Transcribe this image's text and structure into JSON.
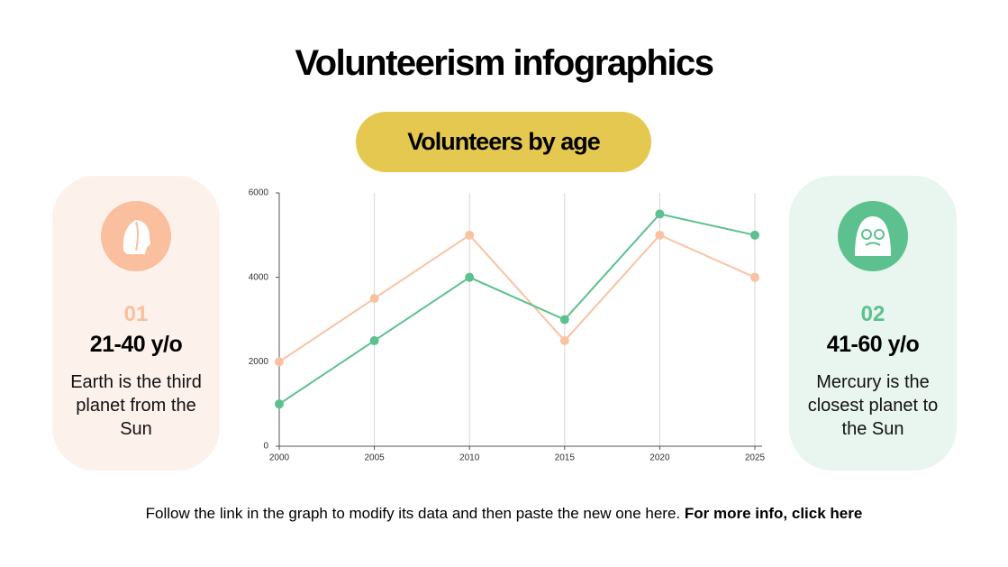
{
  "header": {
    "title": "Volunteerism infographics",
    "subtitle": "Volunteers by age"
  },
  "cards": [
    {
      "number": "01",
      "heading": "21-40 y/o",
      "text": "Earth is the third planet from the Sun",
      "color": "#f9bf9f",
      "background": "#fdf1ec"
    },
    {
      "number": "02",
      "heading": "41-60 y/o",
      "text": "Mercury is the closest planet to the Sun",
      "color": "#5cc18e",
      "background": "#e9f6ef"
    }
  ],
  "chart_data": {
    "type": "line",
    "x": [
      2000,
      2005,
      2010,
      2015,
      2020,
      2025
    ],
    "xlim": [
      2000,
      2025
    ],
    "xticks": [
      2000,
      2005,
      2010,
      2015,
      2020,
      2025
    ],
    "ylim": [
      0,
      6000
    ],
    "yticks": [
      0,
      2000,
      4000,
      6000
    ],
    "grid": "x",
    "series": [
      {
        "color": "#f9c3a3",
        "values": [
          2000,
          3500,
          5000,
          2500,
          5000,
          4000
        ]
      },
      {
        "color": "#5cc18e",
        "values": [
          1000,
          2500,
          4000,
          3000,
          5500,
          5000
        ]
      }
    ]
  },
  "footer": {
    "text": "Follow the link in the graph to modify its data and then paste the new one here.",
    "link": "For more info, click here"
  }
}
